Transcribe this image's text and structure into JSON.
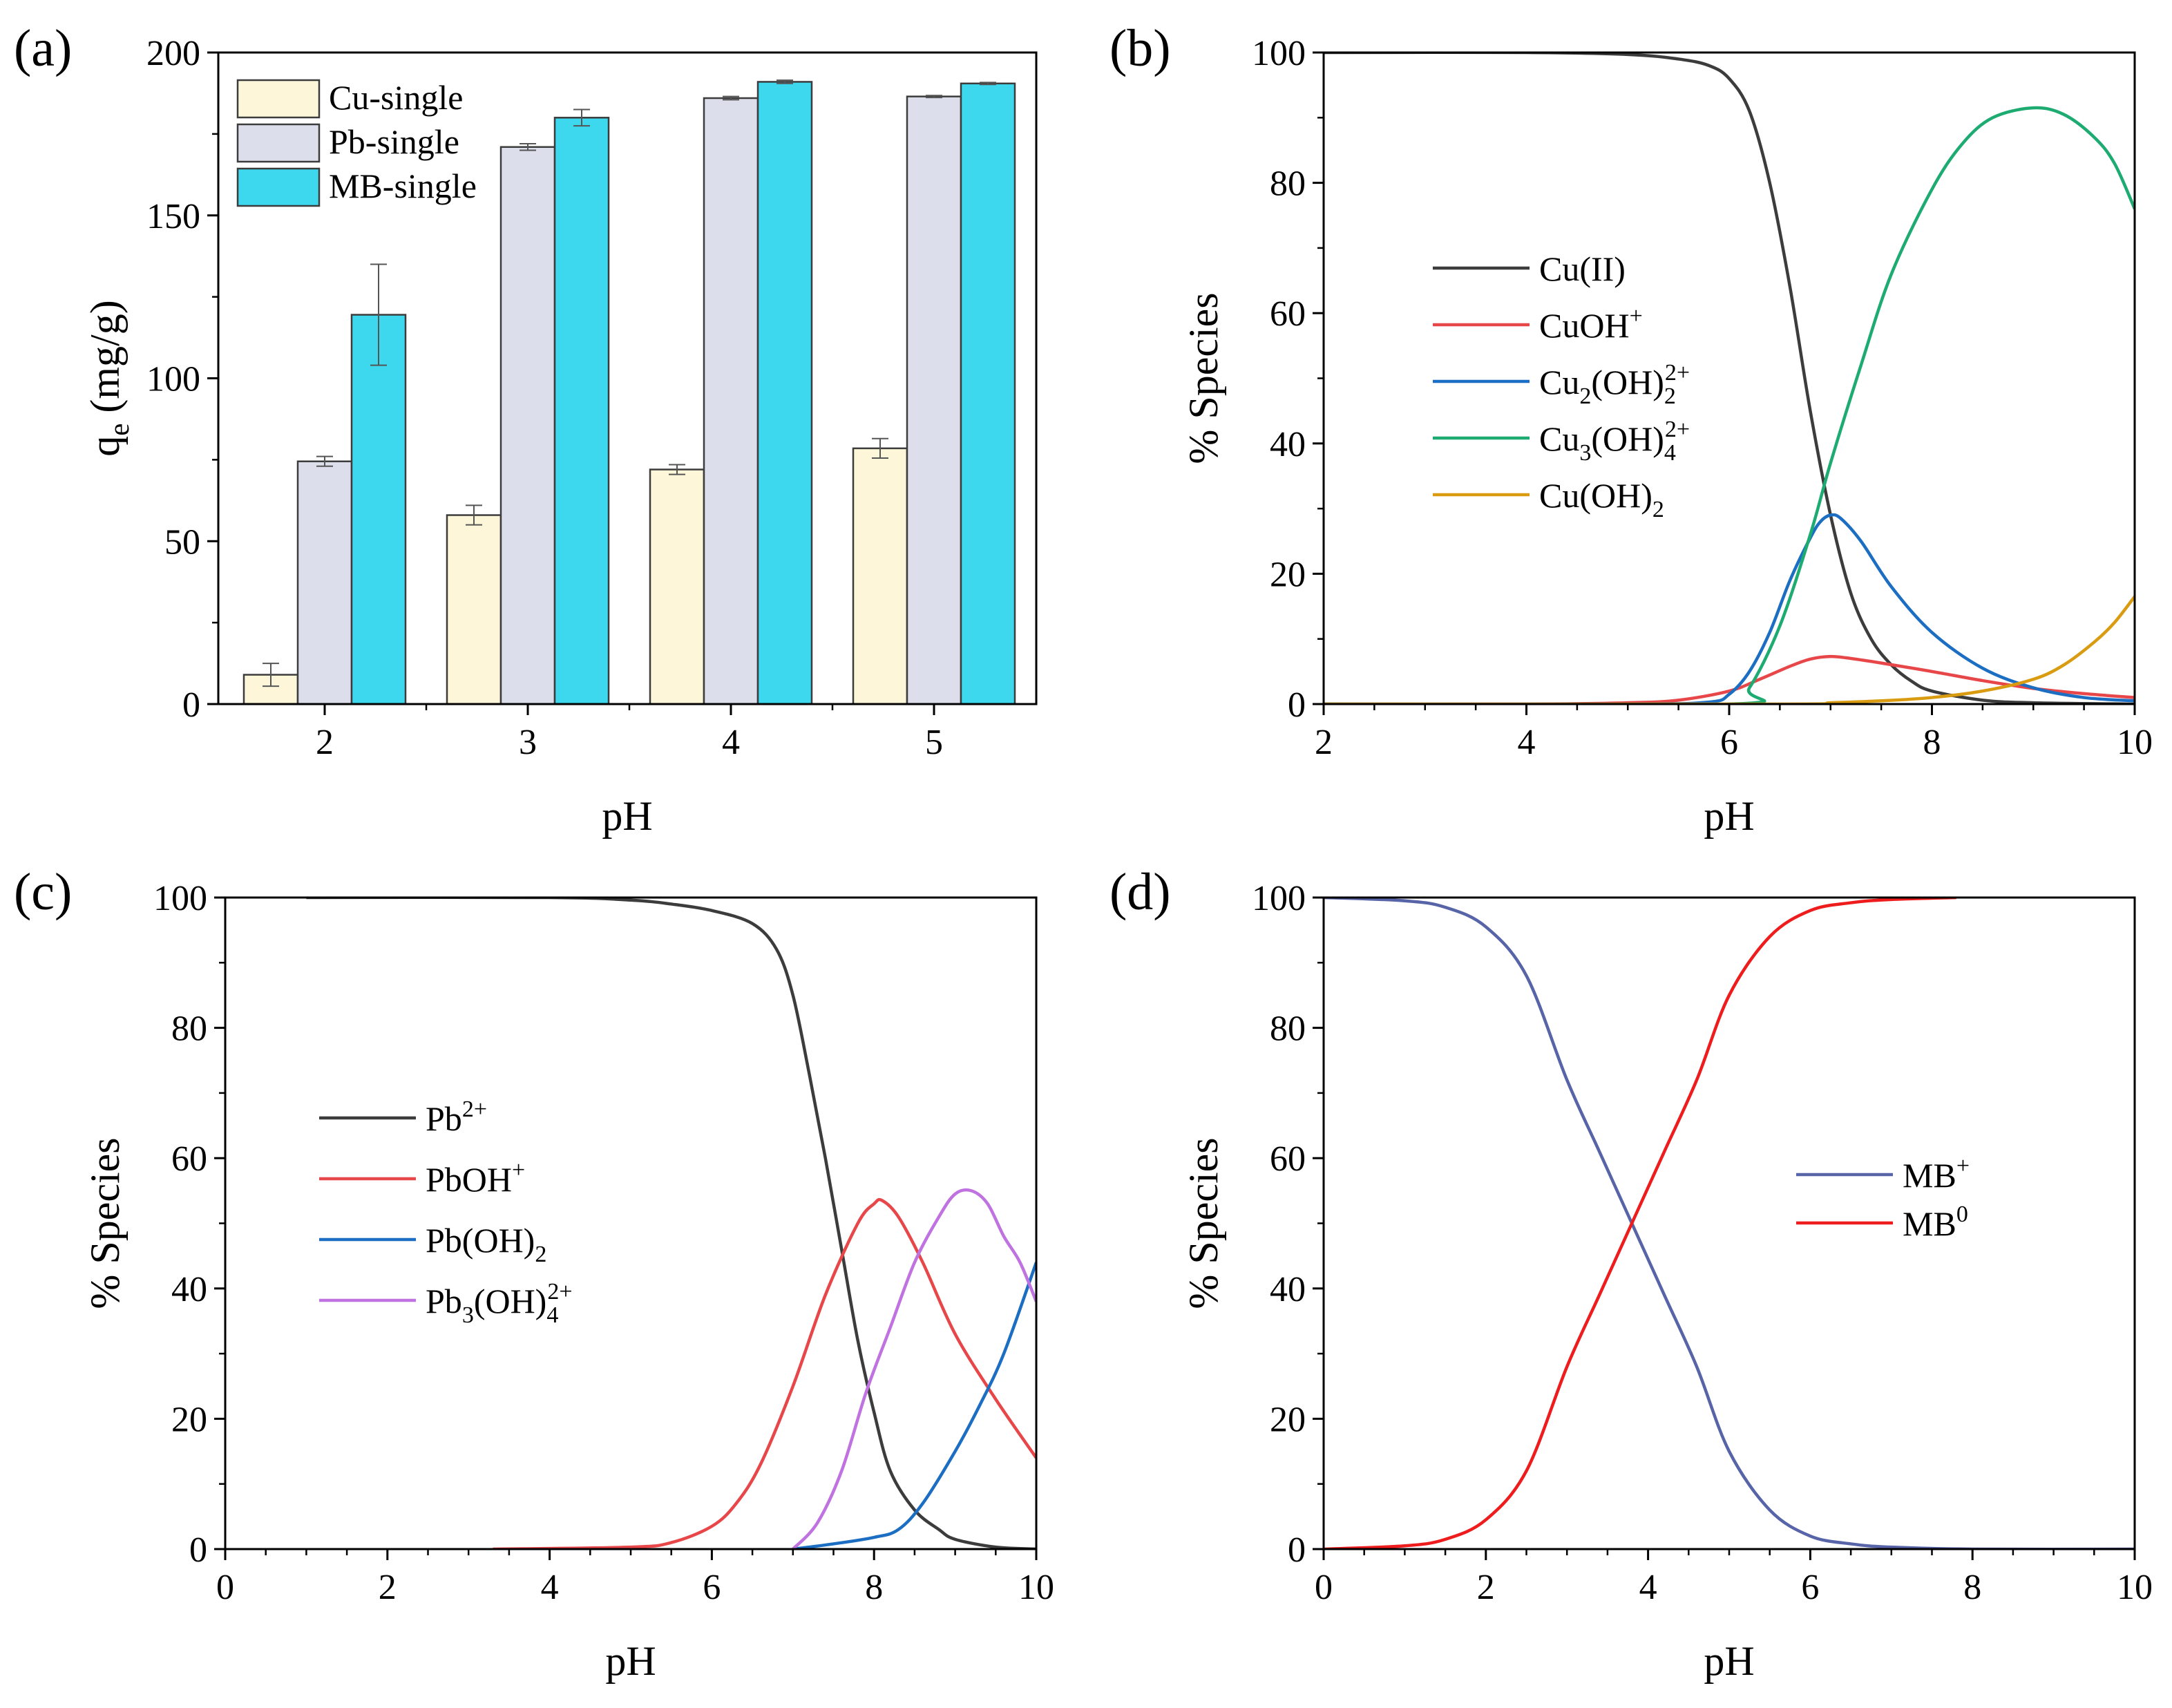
{
  "chart_data": [
    {
      "id": "a",
      "panel_label": "(a)",
      "type": "bar",
      "categories": [
        "2",
        "3",
        "4",
        "5"
      ],
      "series": [
        {
          "name": "Cu-single",
          "color": "#fdf6d8",
          "values": [
            9,
            58,
            72,
            78.5
          ],
          "errors": [
            3.5,
            3,
            1.5,
            3
          ]
        },
        {
          "name": "Pb-single",
          "color": "#dcdeec",
          "values": [
            74.5,
            171,
            186,
            186.5
          ],
          "errors": [
            1.5,
            1,
            0.5,
            0.3
          ]
        },
        {
          "name": "MB-single",
          "color": "#3dd7ee",
          "values": [
            119.5,
            180,
            191,
            190.5
          ],
          "errors": [
            15.5,
            2.5,
            0.5,
            0.3
          ]
        }
      ],
      "xlabel": "pH",
      "ylabel": "q",
      "ylabel_sub": "e",
      "ylabel_unit": " (mg/g)",
      "ylim": [
        0,
        200
      ],
      "yticks": [
        "0",
        "50",
        "100",
        "150",
        "200"
      ],
      "legend": "top-left"
    },
    {
      "id": "b",
      "panel_label": "(b)",
      "type": "line",
      "xlabel": "pH",
      "ylabel": "% Species",
      "xlim": [
        2,
        10
      ],
      "ylim": [
        0,
        100
      ],
      "xticks": [
        "2",
        "4",
        "6",
        "8",
        "10"
      ],
      "yticks": [
        "0",
        "20",
        "40",
        "60",
        "80",
        "100"
      ],
      "legend": "center-left",
      "series": [
        {
          "name": "Cu(II)",
          "base": "Cu(II)",
          "sub": "",
          "sup": "",
          "tail": "",
          "color": "#3c3c3c",
          "x": [
            2,
            4,
            5,
            5.5,
            5.8,
            6,
            6.2,
            6.4,
            6.6,
            6.8,
            7,
            7.2,
            7.4,
            7.6,
            7.8,
            8,
            8.5,
            9,
            10
          ],
          "y": [
            100,
            100,
            99.7,
            99,
            98,
            96,
            91,
            80,
            64,
            45,
            29,
            17,
            10,
            6,
            3.5,
            2,
            0.6,
            0.2,
            0
          ]
        },
        {
          "name": "CuOH+",
          "base": "CuOH",
          "sub": "",
          "sup": "+",
          "tail": "",
          "color": "#e8474a",
          "x": [
            2,
            4,
            5,
            5.5,
            6,
            6.3,
            6.6,
            6.8,
            7,
            7.2,
            7.5,
            8,
            8.5,
            9,
            9.5,
            10
          ],
          "y": [
            0,
            0,
            0.2,
            0.6,
            2,
            3.8,
            5.8,
            6.9,
            7.3,
            7,
            6.3,
            5,
            3.6,
            2.4,
            1.6,
            1
          ]
        },
        {
          "name": "Cu2(OH)2 2+",
          "base": "Cu",
          "sub": "2",
          "sup": "2+",
          "tail": "(OH)",
          "tailsub": "2",
          "color": "#1c6ec2",
          "x": [
            2,
            5,
            5.8,
            6,
            6.2,
            6.4,
            6.6,
            6.8,
            6.9,
            7,
            7.1,
            7.3,
            7.6,
            8,
            8.5,
            9,
            9.5,
            10
          ],
          "y": [
            0,
            0,
            0.3,
            1.5,
            5,
            11,
            19,
            25.5,
            28,
            29,
            28.5,
            25,
            18,
            11,
            5.5,
            2.5,
            1,
            0.5
          ]
        },
        {
          "name": "Cu3(OH)4 2+",
          "base": "Cu",
          "sub": "3",
          "sup": "2+",
          "tail": "(OH)",
          "tailsub": "4",
          "color": "#1dab72",
          "x": [
            2,
            6,
            6.2,
            6.5,
            6.8,
            7,
            7.3,
            7.6,
            8,
            8.3,
            8.6,
            9,
            9.3,
            9.6,
            9.8,
            10
          ],
          "y": [
            0,
            0,
            2.5,
            12,
            26,
            37,
            52,
            66,
            79,
            86,
            90,
            91.5,
            90.5,
            87,
            83,
            76
          ]
        },
        {
          "name": "Cu(OH)2",
          "base": "Cu(OH)",
          "sub": "",
          "sup": "",
          "tail": "",
          "tailsub": "",
          "basesub": "2",
          "color": "#d99b10",
          "x": [
            2,
            6.5,
            7,
            7.5,
            8,
            8.5,
            9,
            9.3,
            9.6,
            9.8,
            10
          ],
          "y": [
            0,
            0,
            0.2,
            0.5,
            1,
            2,
            3.8,
            6,
            9.5,
            12.5,
            16.5
          ]
        }
      ]
    },
    {
      "id": "c",
      "panel_label": "(c)",
      "type": "line",
      "xlabel": "pH",
      "ylabel": "% Species",
      "xlim": [
        0,
        10
      ],
      "ylim": [
        0,
        100
      ],
      "xticks": [
        "0",
        "2",
        "4",
        "6",
        "8",
        "10"
      ],
      "yticks": [
        "0",
        "20",
        "40",
        "60",
        "80",
        "100"
      ],
      "legend": "center-left",
      "series": [
        {
          "name": "Pb2+",
          "base": "Pb",
          "sub": "",
          "sup": "2+",
          "tail": "",
          "color": "#3c3c3c",
          "x": [
            1,
            4,
            5,
            5.5,
            6,
            6.5,
            6.8,
            7,
            7.2,
            7.4,
            7.6,
            7.8,
            8,
            8.2,
            8.5,
            8.8,
            9,
            9.5,
            10
          ],
          "y": [
            100,
            100,
            99.6,
            99,
            98,
            96,
            92,
            85,
            73,
            60,
            46,
            32,
            21,
            12,
            6,
            3,
            1.5,
            0.3,
            0
          ]
        },
        {
          "name": "PbOH+",
          "base": "PbOH",
          "sub": "",
          "sup": "+",
          "tail": "",
          "color": "#e8474a",
          "x": [
            3.3,
            5,
            5.5,
            6,
            6.3,
            6.6,
            7,
            7.4,
            7.8,
            8,
            8.1,
            8.3,
            8.6,
            9,
            9.5,
            10
          ],
          "y": [
            0,
            0.3,
            1,
            3.5,
            7,
            13,
            25,
            39,
            50,
            53,
            53.5,
            51,
            44,
            33,
            23,
            14
          ]
        },
        {
          "name": "Pb(OH)2",
          "base": "Pb(OH)",
          "sub": "",
          "sup": "",
          "tail": "",
          "basesub": "2",
          "color": "#1c6ec2",
          "x": [
            7,
            7.5,
            8,
            8.3,
            8.6,
            9,
            9.3,
            9.6,
            10
          ],
          "y": [
            0,
            0.8,
            1.8,
            3,
            7,
            15,
            22,
            30,
            44
          ]
        },
        {
          "name": "Pb3(OH)4 2+",
          "base": "Pb",
          "sub": "3",
          "sup": "2+",
          "tail": "(OH)",
          "tailsub": "4",
          "color": "#bf72e0",
          "x": [
            7,
            7.3,
            7.6,
            7.9,
            8.2,
            8.5,
            8.8,
            9,
            9.2,
            9.4,
            9.6,
            9.8,
            10
          ],
          "y": [
            0,
            4,
            12,
            24,
            34,
            44,
            51,
            54.5,
            55,
            53,
            48,
            44,
            38
          ]
        }
      ]
    },
    {
      "id": "d",
      "panel_label": "(d)",
      "type": "line",
      "xlabel": "pH",
      "ylabel": "% Species",
      "xlim": [
        0,
        10
      ],
      "ylim": [
        0,
        100
      ],
      "xticks": [
        "0",
        "2",
        "4",
        "6",
        "8",
        "10"
      ],
      "yticks": [
        "0",
        "20",
        "40",
        "60",
        "80",
        "100"
      ],
      "legend": "center-right",
      "series": [
        {
          "name": "MB+",
          "base": "MB",
          "sub": "",
          "sup": "+",
          "tail": "",
          "color": "#5864a8",
          "x": [
            0,
            1,
            1.5,
            2,
            2.5,
            3,
            3.4,
            3.8,
            4.2,
            4.6,
            5,
            5.5,
            6,
            6.5,
            7,
            8,
            10
          ],
          "y": [
            100,
            99.5,
            98.5,
            95.5,
            88,
            72,
            61,
            50,
            39,
            28,
            15,
            6,
            2,
            0.8,
            0.3,
            0,
            0
          ]
        },
        {
          "name": "MB0",
          "base": "MB",
          "sub": "",
          "sup": "0",
          "tail": "",
          "color": "#ee1c1c",
          "x": [
            0,
            1,
            1.5,
            2,
            2.5,
            3,
            3.4,
            3.8,
            4.2,
            4.6,
            5,
            5.5,
            6,
            6.5,
            7,
            7.8
          ],
          "y": [
            0,
            0.5,
            1.5,
            4.5,
            12,
            28,
            39,
            50,
            61,
            72,
            85,
            94,
            98,
            99.2,
            99.7,
            100
          ]
        }
      ]
    }
  ]
}
